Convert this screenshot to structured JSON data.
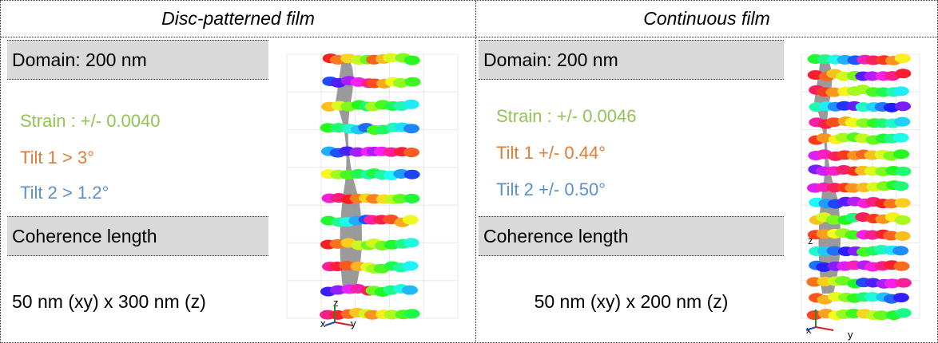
{
  "panels": [
    {
      "title": "Disc-patterned film",
      "domain": "Domain: 200 nm",
      "strain": "Strain : +/- 0.0040",
      "tilt1": "Tilt 1 > 3°",
      "tilt2": "Tilt 2 > 1.2°",
      "coherence_header": "Coherence length",
      "coherence": "50 nm (xy) x 300 nm (z)",
      "axes": [
        "z",
        "x",
        "y"
      ]
    },
    {
      "title": "Continuous film",
      "domain": "Domain: 200 nm",
      "strain": "Strain : +/- 0.0046",
      "tilt1": "Tilt 1 +/- 0.44°",
      "tilt2": "Tilt 2 +/- 0.50°",
      "coherence_header": "Coherence length",
      "coherence": "50 nm (xy) x 200 nm (z)",
      "axes": [
        "z",
        "x",
        "y"
      ]
    }
  ]
}
